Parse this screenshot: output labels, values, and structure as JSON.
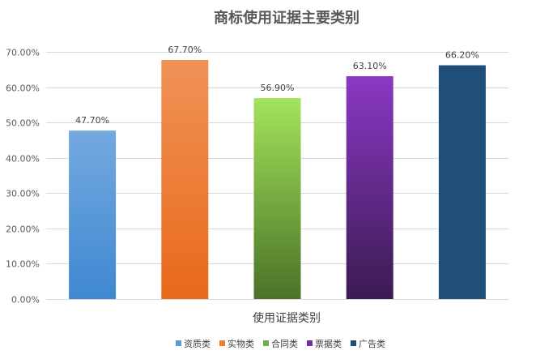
{
  "chart_data": {
    "type": "bar",
    "title": "商标使用证据主要类别",
    "xlabel": "使用证据类别",
    "ylabel": "",
    "categories": [
      "资质类",
      "实物类",
      "合同类",
      "票据类",
      "广告类"
    ],
    "values": [
      47.7,
      67.7,
      56.9,
      63.1,
      66.2
    ],
    "value_labels": [
      "47.70%",
      "67.70%",
      "56.90%",
      "63.10%",
      "66.20%"
    ],
    "ylim": [
      0,
      70
    ],
    "yticks": [
      0,
      10,
      20,
      30,
      40,
      50,
      60,
      70
    ],
    "ytick_labels": [
      "0.00%",
      "10.00%",
      "20.00%",
      "30.00%",
      "40.00%",
      "50.00%",
      "60.00%",
      "70.00%"
    ],
    "grid": true,
    "legend": "bottom",
    "colors": [
      {
        "top": "#74a9e0",
        "bottom": "#3f88d1"
      },
      {
        "top": "#f09257",
        "bottom": "#e8691b"
      },
      {
        "top": "#a3e35c",
        "bottom": "#4b7227"
      },
      {
        "top": "#8a38c4",
        "bottom": "#3b1b52"
      },
      {
        "top": "#1f4e79",
        "bottom": "#1f4e79"
      }
    ],
    "legend_colors": [
      "#5b9bd5",
      "#ed7d31",
      "#70ad47",
      "#7030a0",
      "#1f4e79"
    ]
  }
}
